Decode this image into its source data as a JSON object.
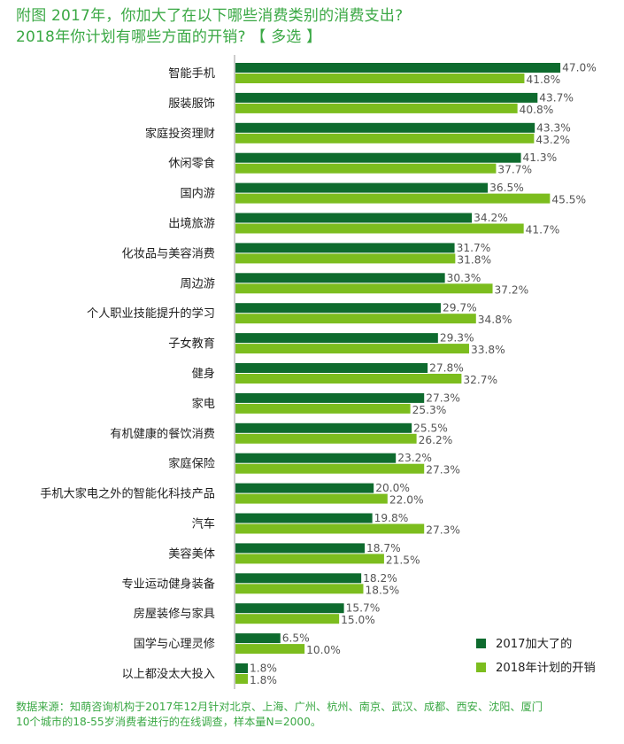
{
  "chart_data": {
    "type": "bar",
    "orientation": "horizontal",
    "title": "附图 2017年，你加大了在以下哪些消费类别的消费支出?",
    "subtitle": "2018年你计划有哪些方面的开销? 【 多选 】",
    "categories": [
      "智能手机",
      "服装服饰",
      "家庭投资理财",
      "休闲零食",
      "国内游",
      "出境旅游",
      "化妆品与美容消费",
      "周边游",
      "个人职业技能提升的学习",
      "子女教育",
      "健身",
      "家电",
      "有机健康的餐饮消费",
      "家庭保险",
      "手机大家电之外的智能化科技产品",
      "汽车",
      "美容美体",
      "专业运动健身装备",
      "房屋装修与家具",
      "国学与心理灵修",
      "以上都没太大投入"
    ],
    "series": [
      {
        "name": "2017加大了的",
        "color": "#0e6b2e",
        "values": [
          47.0,
          43.7,
          43.3,
          41.3,
          36.5,
          34.2,
          31.7,
          30.3,
          29.7,
          29.3,
          27.8,
          27.3,
          25.5,
          23.2,
          20.0,
          19.8,
          18.7,
          18.2,
          15.7,
          6.5,
          1.8
        ],
        "labels": [
          "47.0%",
          "43.7%",
          "43.3%",
          "41.3%",
          "36.5%",
          "34.2%",
          "31.7%",
          "30.3%",
          "29.7%",
          "29.3%",
          "27.8%",
          "27.3%",
          "25.5%",
          "23.2%",
          "20.0%",
          "19.8%",
          "18.7%",
          "18.2%",
          "15.7%",
          "6.5%",
          "1.8%"
        ]
      },
      {
        "name": "2018年计划的开销",
        "color": "#7cbd1e",
        "values": [
          41.8,
          40.8,
          43.2,
          37.7,
          45.5,
          41.7,
          31.8,
          37.2,
          34.8,
          33.8,
          32.7,
          25.3,
          26.2,
          27.3,
          22.0,
          27.3,
          21.5,
          18.5,
          15.0,
          10.0,
          1.8
        ],
        "labels": [
          "41.8%",
          "40.8%",
          "43.2%",
          "37.7%",
          "45.5%",
          "41.7%",
          "31.8%",
          "37.2%",
          "34.8%",
          "33.8%",
          "32.7%",
          "25.3%",
          "26.2%",
          "27.3%",
          "22.0%",
          "27.3%",
          "21.5%",
          "18.5%",
          "15.0%",
          "10.0%",
          "1.8%"
        ]
      }
    ],
    "legend_position": "bottom-right",
    "grid": false
  },
  "source": {
    "line1": "数据来源：知萌咨询机构于2017年12月针对北京、上海、广州、杭州、南京、武汉、成都、西安、沈阳、厦门",
    "line2": "10个城市的18-55岁消费者进行的在线调查，样本量N=2000。"
  }
}
